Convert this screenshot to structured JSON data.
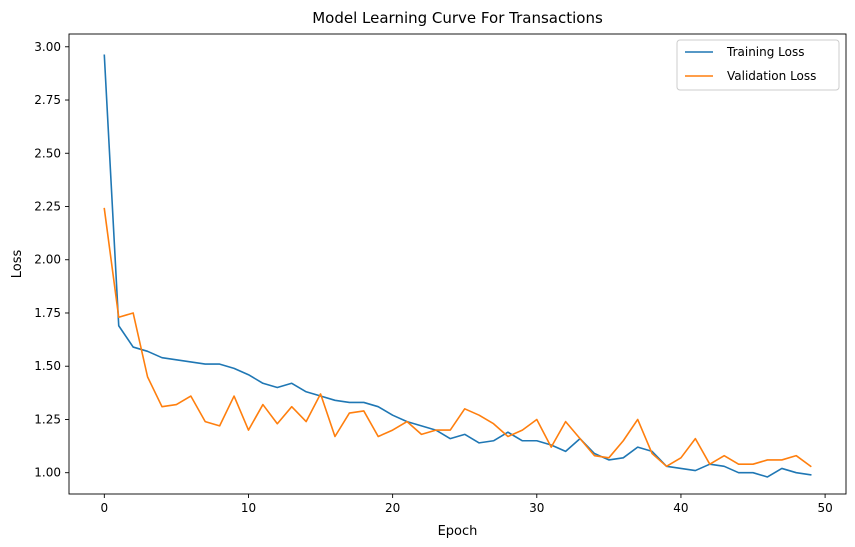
{
  "chart_data": {
    "type": "line",
    "title": "Model Learning Curve For Transactions",
    "xlabel": "Epoch",
    "ylabel": "Loss",
    "xlim": [
      -2.45,
      51.45
    ],
    "ylim": [
      0.9,
      3.06
    ],
    "xticks": [
      0,
      10,
      20,
      30,
      40,
      50
    ],
    "xtick_labels": [
      "0",
      "10",
      "20",
      "30",
      "40",
      "50"
    ],
    "yticks": [
      1.0,
      1.25,
      1.5,
      1.75,
      2.0,
      2.25,
      2.5,
      2.75,
      3.0
    ],
    "ytick_labels": [
      "1.00",
      "1.25",
      "1.50",
      "1.75",
      "2.00",
      "2.25",
      "2.50",
      "2.75",
      "3.00"
    ],
    "grid": false,
    "legend_position": "top-right",
    "x": [
      0,
      1,
      2,
      3,
      4,
      5,
      6,
      7,
      8,
      9,
      10,
      11,
      12,
      13,
      14,
      15,
      16,
      17,
      18,
      19,
      20,
      21,
      22,
      23,
      24,
      25,
      26,
      27,
      28,
      29,
      30,
      31,
      32,
      33,
      34,
      35,
      36,
      37,
      38,
      39,
      40,
      41,
      42,
      43,
      44,
      45,
      46,
      47,
      48,
      49
    ],
    "series": [
      {
        "name": "Training Loss",
        "color": "#1f77b4",
        "values": [
          2.96,
          1.69,
          1.59,
          1.57,
          1.54,
          1.53,
          1.52,
          1.51,
          1.51,
          1.49,
          1.46,
          1.42,
          1.4,
          1.42,
          1.38,
          1.36,
          1.34,
          1.33,
          1.33,
          1.31,
          1.27,
          1.24,
          1.22,
          1.2,
          1.16,
          1.18,
          1.14,
          1.15,
          1.19,
          1.15,
          1.15,
          1.13,
          1.1,
          1.16,
          1.09,
          1.06,
          1.07,
          1.12,
          1.1,
          1.03,
          1.02,
          1.01,
          1.04,
          1.03,
          1.0,
          1.0,
          0.98,
          1.02,
          1.0,
          0.99
        ]
      },
      {
        "name": "Validation Loss",
        "color": "#ff7f0e",
        "values": [
          2.24,
          1.73,
          1.75,
          1.45,
          1.31,
          1.32,
          1.36,
          1.24,
          1.22,
          1.36,
          1.2,
          1.32,
          1.23,
          1.31,
          1.24,
          1.37,
          1.17,
          1.28,
          1.29,
          1.17,
          1.2,
          1.24,
          1.18,
          1.2,
          1.2,
          1.3,
          1.27,
          1.23,
          1.17,
          1.2,
          1.25,
          1.12,
          1.24,
          1.16,
          1.08,
          1.07,
          1.15,
          1.25,
          1.09,
          1.03,
          1.07,
          1.16,
          1.04,
          1.08,
          1.04,
          1.04,
          1.06,
          1.06,
          1.08,
          1.03
        ]
      }
    ]
  }
}
